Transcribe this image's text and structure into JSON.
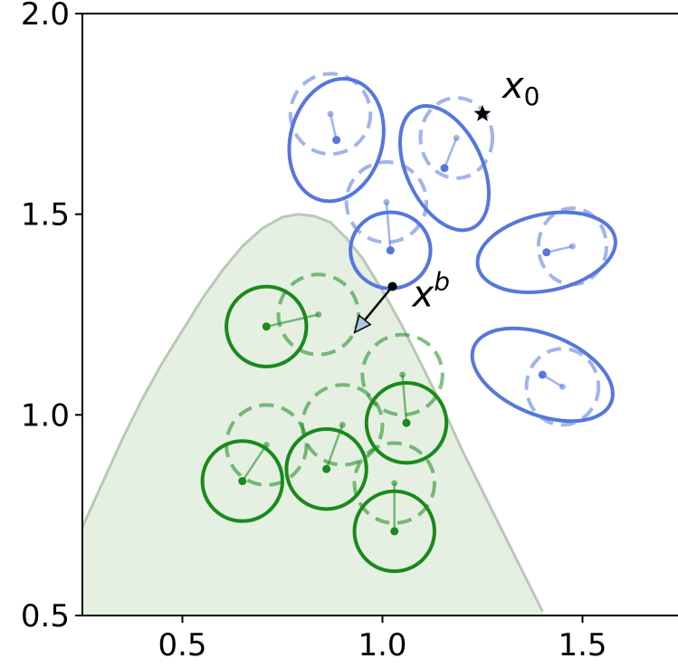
{
  "chart_data": {
    "type": "scatter",
    "title": "",
    "xlabel": "",
    "ylabel": "",
    "xlim": [
      0.25,
      1.75
    ],
    "ylim": [
      0.5,
      2.0
    ],
    "grid": false,
    "x_ticks": [
      0.5,
      1.0,
      1.5
    ],
    "x_tick_labels": [
      "0.5",
      "1.0",
      "1.5"
    ],
    "y_ticks": [
      0.5,
      1.0,
      1.5,
      2.0
    ],
    "y_tick_labels": [
      "0.5",
      "1.0",
      "1.5",
      "2.0"
    ],
    "region": {
      "fill": "#e5f0e3",
      "stroke": "#b9c9b6",
      "curve": [
        [
          0.25,
          0.72
        ],
        [
          0.3,
          0.83
        ],
        [
          0.35,
          0.94
        ],
        [
          0.4,
          1.04
        ],
        [
          0.45,
          1.13
        ],
        [
          0.5,
          1.21
        ],
        [
          0.55,
          1.29
        ],
        [
          0.6,
          1.36
        ],
        [
          0.65,
          1.42
        ],
        [
          0.7,
          1.465
        ],
        [
          0.75,
          1.493
        ],
        [
          0.79,
          1.5
        ],
        [
          0.83,
          1.495
        ],
        [
          0.87,
          1.48
        ],
        [
          0.91,
          1.44
        ],
        [
          0.95,
          1.39
        ],
        [
          1.0,
          1.31
        ],
        [
          1.05,
          1.22
        ],
        [
          1.1,
          1.12
        ],
        [
          1.15,
          1.02
        ],
        [
          1.2,
          0.91
        ],
        [
          1.25,
          0.81
        ],
        [
          1.3,
          0.71
        ],
        [
          1.35,
          0.61
        ],
        [
          1.4,
          0.51
        ]
      ]
    },
    "green_circles": {
      "color": "#1a8a1a",
      "items": [
        {
          "x": 0.71,
          "y": 1.22,
          "px": 0.84,
          "py": 1.25
        },
        {
          "x": 0.65,
          "y": 0.835,
          "px": 0.71,
          "py": 0.925
        },
        {
          "x": 0.86,
          "y": 0.865,
          "px": 0.9,
          "py": 0.975
        },
        {
          "x": 1.06,
          "y": 0.98,
          "px": 1.05,
          "py": 1.1
        },
        {
          "x": 1.03,
          "y": 0.71,
          "px": 1.03,
          "py": 0.83
        }
      ]
    },
    "blue_ellipses": {
      "color": "#5577dd",
      "items": [
        {
          "x": 0.885,
          "y": 1.685,
          "px": 0.87,
          "py": 1.75,
          "a": 0.115,
          "b": 0.155,
          "rot": -15,
          "pa": 0.1,
          "pb": 0.1,
          "prot": 0
        },
        {
          "x": 1.155,
          "y": 1.615,
          "px": 1.185,
          "py": 1.69,
          "a": 0.095,
          "b": 0.165,
          "rot": 25,
          "pa": 0.09,
          "pb": 0.1,
          "prot": 0
        },
        {
          "x": 1.02,
          "y": 1.41,
          "px": 1.01,
          "py": 1.53,
          "a": 0.1,
          "b": 0.095,
          "rot": 0,
          "pa": 0.1,
          "pb": 0.1,
          "prot": 0
        },
        {
          "x": 1.41,
          "y": 1.405,
          "px": 1.475,
          "py": 1.42,
          "a": 0.175,
          "b": 0.095,
          "rot": 12,
          "pa": 0.085,
          "pb": 0.095,
          "prot": 0
        },
        {
          "x": 1.4,
          "y": 1.1,
          "px": 1.45,
          "py": 1.07,
          "a": 0.185,
          "b": 0.1,
          "rot": -22,
          "pa": 0.09,
          "pb": 0.095,
          "prot": 0
        }
      ]
    },
    "points": [
      {
        "label": "x",
        "subscript": "0",
        "superscript": "",
        "x": 1.25,
        "y": 1.75,
        "marker": "star"
      },
      {
        "label": "x",
        "subscript": "",
        "superscript": "b",
        "x": 1.025,
        "y": 1.32,
        "marker": "dot"
      }
    ],
    "arrow": {
      "from": [
        1.025,
        1.32
      ],
      "to": [
        0.93,
        1.205
      ],
      "color": "#000000",
      "head_fill": "#a9c7e8"
    }
  }
}
